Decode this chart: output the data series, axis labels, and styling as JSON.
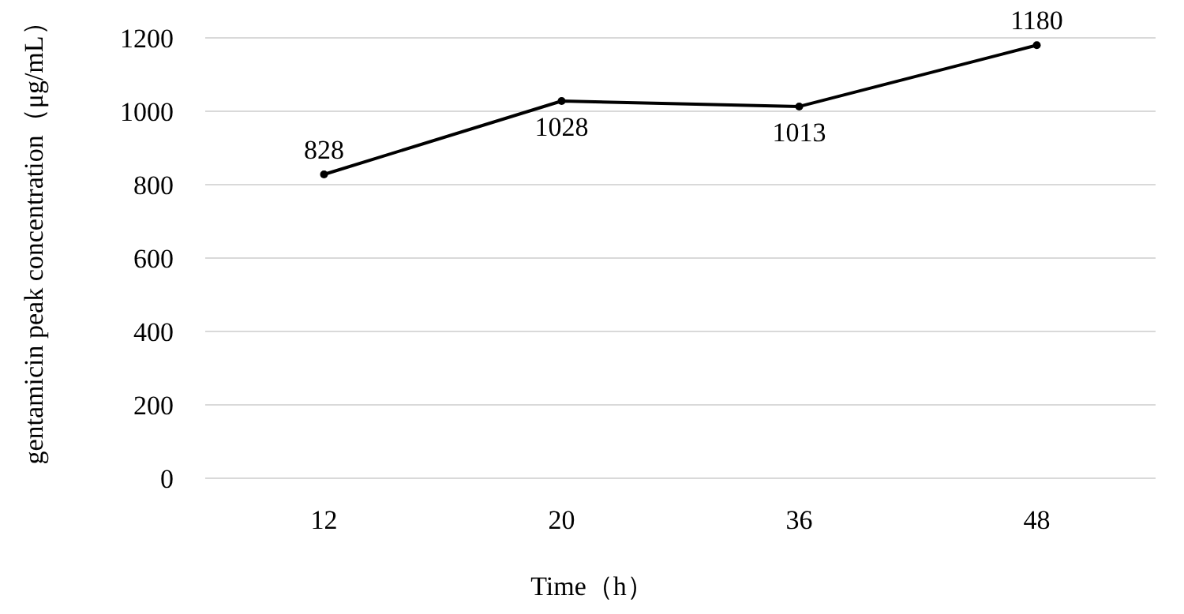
{
  "chart_data": {
    "type": "line",
    "xlabel": "Time（h）",
    "ylabel": "gentamicin peak concentration（μg/mL）",
    "categories": [
      "12",
      "20",
      "36",
      "48"
    ],
    "series": [
      {
        "color": "#000000",
        "values": [
          828,
          1028,
          1013,
          1180
        ]
      }
    ],
    "ylim": [
      0,
      1200
    ],
    "yticks": [
      0,
      200,
      400,
      600,
      800,
      1000,
      1200
    ],
    "grid": "y",
    "marker": "circle",
    "line_style": "solid",
    "data_labels": true
  }
}
